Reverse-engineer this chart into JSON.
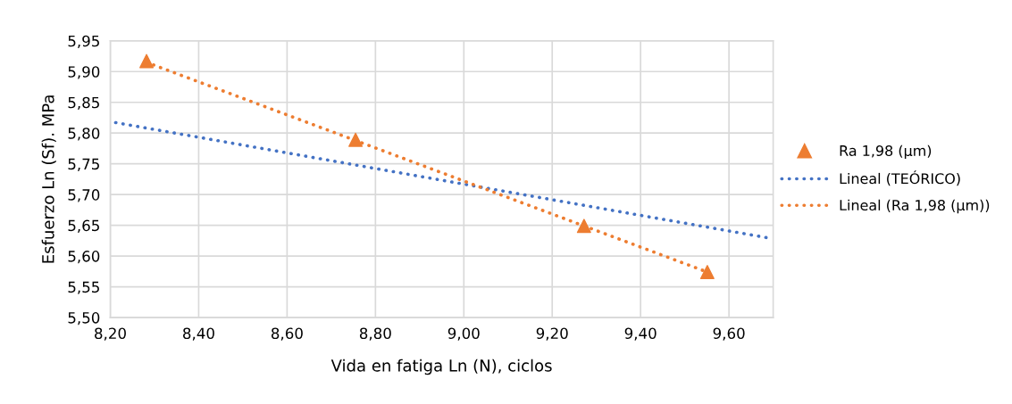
{
  "chart_data": {
    "type": "scatter",
    "xlabel": "Vida en fatiga Ln (N), ciclos",
    "ylabel": "Esfuerzo Ln (Sf). MPa",
    "xlim": [
      8.2,
      9.7
    ],
    "ylim": [
      5.5,
      5.95
    ],
    "xticks": [
      {
        "value": 8.2,
        "label": "8,20"
      },
      {
        "value": 8.4,
        "label": "8,40"
      },
      {
        "value": 8.6,
        "label": "8,60"
      },
      {
        "value": 8.8,
        "label": "8,80"
      },
      {
        "value": 9.0,
        "label": "9,00"
      },
      {
        "value": 9.2,
        "label": "9,20"
      },
      {
        "value": 9.4,
        "label": "9,40"
      },
      {
        "value": 9.6,
        "label": "9,60"
      }
    ],
    "yticks": [
      {
        "value": 5.5,
        "label": "5,50"
      },
      {
        "value": 5.55,
        "label": "5,55"
      },
      {
        "value": 5.6,
        "label": "5,60"
      },
      {
        "value": 5.65,
        "label": "5,65"
      },
      {
        "value": 5.7,
        "label": "5,70"
      },
      {
        "value": 5.75,
        "label": "5,75"
      },
      {
        "value": 5.8,
        "label": "5,80"
      },
      {
        "value": 5.85,
        "label": "5,85"
      },
      {
        "value": 5.9,
        "label": "5,90"
      },
      {
        "value": 5.95,
        "label": "5,95"
      }
    ],
    "grid": true,
    "legend": "right",
    "series": [
      {
        "name": "Ra 1,98 (µm)",
        "marker": "triangle",
        "color": "#ed7d31",
        "x": [
          8.282,
          8.755,
          9.272,
          9.551
        ],
        "values": [
          5.917,
          5.789,
          5.649,
          5.574
        ]
      },
      {
        "name": "Lineal (TEÓRICO)",
        "type": "line",
        "line_style": "dotted",
        "marker": "none",
        "color": "#4472c4",
        "x": [
          8.212,
          9.693
        ],
        "values": [
          5.817,
          5.629
        ]
      },
      {
        "name": "Lineal (Ra 1,98 (µm))",
        "type": "line",
        "line_style": "dotted",
        "marker": "none",
        "color": "#ed7d31",
        "x": [
          8.282,
          9.551
        ],
        "values": [
          5.915,
          5.574
        ]
      }
    ]
  }
}
